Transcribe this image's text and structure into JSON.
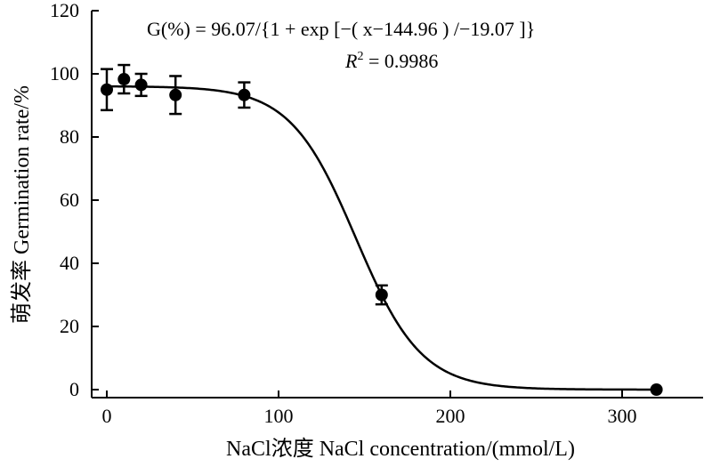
{
  "chart_data": {
    "type": "scatter",
    "title": "",
    "xlabel": "NaCl浓度 NaCl concentration/(mmol/L)",
    "ylabel": "萌发率 Germination rate/%",
    "xlim": [
      -8,
      355
    ],
    "ylim": [
      -2,
      120
    ],
    "x_ticks": [
      0,
      100,
      200,
      300
    ],
    "y_ticks": [
      0,
      20,
      40,
      60,
      80,
      100,
      120
    ],
    "grid": false,
    "points": [
      {
        "x": 0,
        "y": 95.0,
        "err": 6.5
      },
      {
        "x": 10,
        "y": 98.3,
        "err": 4.5
      },
      {
        "x": 20,
        "y": 96.5,
        "err": 3.5
      },
      {
        "x": 40,
        "y": 93.3,
        "err": 6.0
      },
      {
        "x": 80,
        "y": 93.3,
        "err": 4.0
      },
      {
        "x": 160,
        "y": 30.0,
        "err": 3.0
      },
      {
        "x": 320,
        "y": 0.0,
        "err": 0
      }
    ],
    "fit": {
      "a": 96.07,
      "x0": 144.96,
      "b": -19.07
    },
    "annotations": {
      "equation": "G(%) = 96.07/{1 + exp [−( x−144.96 ) /−19.07 ]}",
      "r2_label": "R",
      "r2_sup": "2",
      "r2_value": " = 0.9986"
    }
  }
}
